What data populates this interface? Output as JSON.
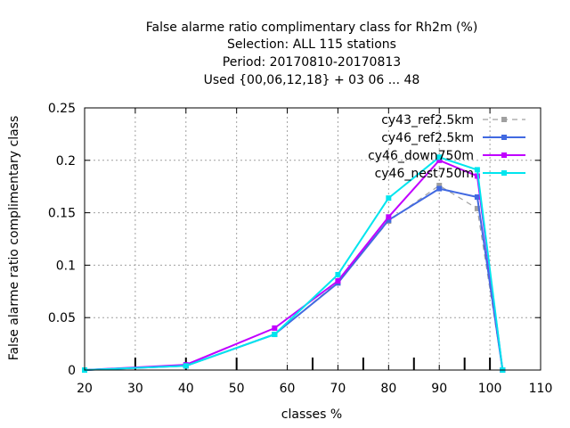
{
  "chart_data": {
    "type": "line",
    "title_lines": [
      "False alarme ratio complimentary class  for Rh2m (%)",
      "Selection: ALL    115 stations",
      "Period: 20170810-20170813",
      "Used {00,06,12,18} + 03 06 ... 48"
    ],
    "xlabel": "classes %",
    "ylabel": "False alarme ratio complimentary class",
    "xlim": [
      20,
      110
    ],
    "ylim": [
      0,
      0.25
    ],
    "x_ticks": [
      20,
      30,
      40,
      50,
      60,
      70,
      80,
      90,
      100,
      110
    ],
    "y_ticks": [
      0,
      0.05,
      0.1,
      0.15,
      0.2,
      0.25
    ],
    "x_tick_labels": [
      "20",
      "30",
      "40",
      "50",
      "60",
      "70",
      "80",
      "90",
      "100",
      "110"
    ],
    "y_tick_labels": [
      "0",
      "0.05",
      "0.1",
      "0.15",
      "0.2",
      "0.25"
    ],
    "class_marks": [
      30,
      40,
      50,
      65,
      75,
      85,
      95,
      100
    ],
    "grid": true,
    "legend_position": "top-right",
    "series": [
      {
        "name": "cy43_ref2.5km",
        "color": "#a0a0a0",
        "dashed": true,
        "x": [
          20,
          40,
          57.5,
          70,
          80,
          90,
          97.5,
          102.5
        ],
        "y": [
          0,
          0.004,
          0.034,
          0.084,
          0.142,
          0.176,
          0.154,
          0
        ]
      },
      {
        "name": "cy46_ref2.5km",
        "color": "#4169e1",
        "dashed": false,
        "x": [
          20,
          40,
          57.5,
          70,
          80,
          90,
          97.5,
          102.5
        ],
        "y": [
          0,
          0.004,
          0.034,
          0.083,
          0.143,
          0.173,
          0.165,
          0
        ]
      },
      {
        "name": "cy46_down750m",
        "color": "#c000ff",
        "dashed": false,
        "x": [
          20,
          40,
          57.5,
          70,
          80,
          90,
          97.5,
          102.5
        ],
        "y": [
          0,
          0.005,
          0.04,
          0.085,
          0.146,
          0.2,
          0.185,
          0
        ]
      },
      {
        "name": "cy46_nest750m",
        "color": "#00e5ee",
        "dashed": false,
        "x": [
          20,
          40,
          57.5,
          70,
          80,
          90,
          97.5,
          102.5
        ],
        "y": [
          0,
          0.004,
          0.034,
          0.091,
          0.164,
          0.203,
          0.191,
          0
        ]
      }
    ]
  }
}
